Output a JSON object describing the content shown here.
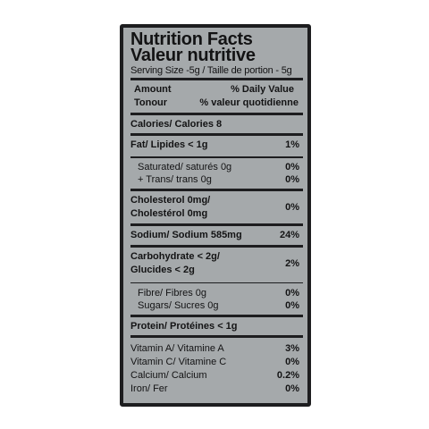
{
  "title_en": "Nutrition Facts",
  "title_fr": "Valeur nutritive",
  "serving": "Serving Size -5g / Taille de portion - 5g",
  "header": {
    "amount": "Amount",
    "daily_value": "% Daily Value",
    "teneur": "Tonour",
    "valeur_quot": "% valeur quotidienne"
  },
  "calories": "Calories/ Calories  8",
  "fat": {
    "label": "Fat/ Lipides < 1g",
    "dv": "1%"
  },
  "saturated": {
    "label": "Saturated/ saturés 0g",
    "dv": "0%"
  },
  "trans": {
    "label": "+ Trans/ trans 0g",
    "dv": "0%"
  },
  "cholesterol": {
    "label1": "Cholesterol 0mg/",
    "label2": "Cholestérol 0mg",
    "dv": "0%"
  },
  "sodium": {
    "label": "Sodium/ Sodium 585mg",
    "dv": "24%"
  },
  "carbohydrate": {
    "label1": "Carbohydrate < 2g/",
    "label2": "Glucides < 2g",
    "dv": "2%"
  },
  "fibre": {
    "label": "Fibre/ Fibres 0g",
    "dv": "0%"
  },
  "sugars": {
    "label": "Sugars/ Sucres  0g",
    "dv": "0%"
  },
  "protein": "Protein/ Protéines < 1g",
  "vitamins": [
    {
      "label": "Vitamin A/ Vitamine A",
      "dv": "3%"
    },
    {
      "label": "Vitamin C/ Vitamine C",
      "dv": "0%"
    },
    {
      "label": "Calcium/ Calcium",
      "dv": "0.2%"
    },
    {
      "label": "Iron/ Fer",
      "dv": "0%"
    }
  ]
}
